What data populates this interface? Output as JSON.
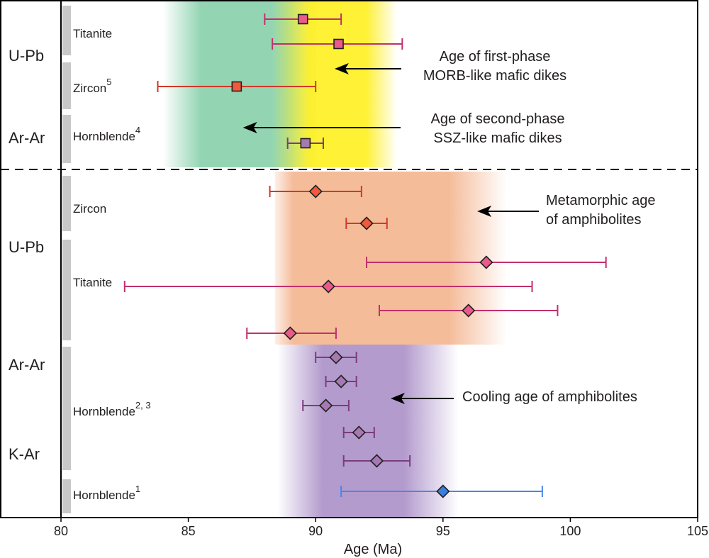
{
  "chart_data": {
    "type": "scatter",
    "xlabel": "Age (Ma)",
    "xlim": [
      80,
      105
    ],
    "xticks": [
      80,
      85,
      90,
      95,
      100,
      105
    ],
    "tick_labels": [
      "80",
      "85",
      "90",
      "95",
      "100",
      "105"
    ],
    "bands": [
      {
        "name": "green-band",
        "from": 84.0,
        "to": 90.0,
        "color": "#93d5b3"
      },
      {
        "name": "yellow-band",
        "from": 88.3,
        "to": 93.2,
        "color": "#fff02a"
      },
      {
        "name": "orange-band",
        "from": 88.4,
        "to": 97.5,
        "color": "#f4b48e"
      },
      {
        "name": "purple-band",
        "from": 88.5,
        "to": 95.6,
        "color": "#b39bcd"
      }
    ],
    "method_labels": [
      "U-Pb",
      "Ar-Ar",
      "U-Pb",
      "Ar-Ar",
      "K-Ar"
    ],
    "mineral_groups": [
      {
        "name": "Titanite",
        "sup": ""
      },
      {
        "name": "Zircon",
        "sup": "5"
      },
      {
        "name": "Hornblende",
        "sup": "4"
      },
      {
        "name": "Zircon",
        "sup": ""
      },
      {
        "name": "Titanite",
        "sup": ""
      },
      {
        "name": "Hornblende",
        "sup": "2, 3"
      },
      {
        "name": "Hornblende",
        "sup": "1"
      }
    ],
    "series": [
      {
        "group": "upper",
        "mineral": "Titanite",
        "marker": "square",
        "age": 89.5,
        "low": 88.0,
        "high": 91.0,
        "color": "#e85b8a",
        "line": "#c0306d"
      },
      {
        "group": "upper",
        "mineral": "Titanite",
        "marker": "square",
        "age": 90.9,
        "low": 88.3,
        "high": 93.4,
        "color": "#e85b8a",
        "line": "#c0306d"
      },
      {
        "group": "upper",
        "mineral": "Zircon",
        "marker": "square",
        "age": 86.9,
        "low": 83.8,
        "high": 90.0,
        "color": "#ef5a3a",
        "line": "#cf3a2a"
      },
      {
        "group": "upper",
        "mineral": "Hornblende",
        "marker": "square",
        "age": 89.6,
        "low": 88.9,
        "high": 90.3,
        "color": "#a679b2",
        "line": "#7a3d7f"
      },
      {
        "group": "lower",
        "mineral": "Zircon",
        "marker": "diamond",
        "age": 90.0,
        "low": 88.2,
        "high": 91.8,
        "color": "#ef5a3a",
        "line": "#cf3a2a"
      },
      {
        "group": "lower",
        "mineral": "Zircon",
        "marker": "diamond",
        "age": 92.0,
        "low": 91.2,
        "high": 92.8,
        "color": "#ef5a3a",
        "line": "#cf3a2a"
      },
      {
        "group": "lower",
        "mineral": "Titanite",
        "marker": "diamond",
        "age": 96.7,
        "low": 92.0,
        "high": 101.4,
        "color": "#e85b8a",
        "line": "#c0306d"
      },
      {
        "group": "lower",
        "mineral": "Titanite",
        "marker": "diamond",
        "age": 90.5,
        "low": 82.5,
        "high": 98.5,
        "color": "#e85b8a",
        "line": "#c0306d"
      },
      {
        "group": "lower",
        "mineral": "Titanite",
        "marker": "diamond",
        "age": 96.0,
        "low": 92.5,
        "high": 99.5,
        "color": "#e85b8a",
        "line": "#c0306d"
      },
      {
        "group": "lower",
        "mineral": "Titanite",
        "marker": "diamond",
        "age": 89.0,
        "low": 87.3,
        "high": 90.8,
        "color": "#e85b8a",
        "line": "#c0306d"
      },
      {
        "group": "lower",
        "mineral": "Hornblende",
        "marker": "diamond",
        "age": 90.8,
        "low": 90.0,
        "high": 91.6,
        "color": "#a679b2",
        "line": "#7a3d7f"
      },
      {
        "group": "lower",
        "mineral": "Hornblende",
        "marker": "diamond",
        "age": 91.0,
        "low": 90.4,
        "high": 91.6,
        "color": "#a679b2",
        "line": "#7a3d7f"
      },
      {
        "group": "lower",
        "mineral": "Hornblende",
        "marker": "diamond",
        "age": 90.4,
        "low": 89.5,
        "high": 91.3,
        "color": "#a679b2",
        "line": "#7a3d7f"
      },
      {
        "group": "lower",
        "mineral": "Hornblende",
        "marker": "diamond",
        "age": 91.7,
        "low": 91.1,
        "high": 92.3,
        "color": "#a679b2",
        "line": "#7a3d7f"
      },
      {
        "group": "lower",
        "mineral": "Hornblende",
        "marker": "diamond",
        "age": 92.4,
        "low": 91.1,
        "high": 93.7,
        "color": "#a679b2",
        "line": "#7a3d7f"
      },
      {
        "group": "lower",
        "mineral": "Hornblende",
        "marker": "diamond",
        "age": 95.0,
        "low": 91.0,
        "high": 98.9,
        "color": "#3a7fe0",
        "line": "#4a86e8"
      }
    ],
    "annotations": [
      {
        "lines": [
          "Age of first-phase",
          "MORB-like mafic dikes"
        ],
        "arrow_to": 90.8
      },
      {
        "lines": [
          "Age of second-phase",
          "SSZ-like mafic dikes"
        ],
        "arrow_to": 87.2
      },
      {
        "lines": [
          "Metamorphic age",
          "of amphibolites"
        ],
        "arrow_to": 96.4
      },
      {
        "lines": [
          "Cooling age of amphibolites"
        ],
        "arrow_to": 93.0
      }
    ]
  }
}
